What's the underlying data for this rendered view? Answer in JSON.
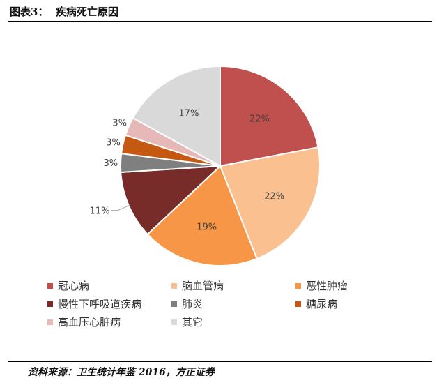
{
  "figure": {
    "title": "图表3：  疾病死亡原因",
    "source": "资料来源：卫生统计年鉴 2016，方正证券"
  },
  "chart_data": {
    "type": "pie",
    "title": "",
    "slices": [
      {
        "name": "冠心病",
        "value": 22,
        "label": "22%",
        "color": "#c0504d"
      },
      {
        "name": "脑血管病",
        "value": 22,
        "label": "22%",
        "color": "#fac090"
      },
      {
        "name": "恶性肿瘤",
        "value": 19,
        "label": "19%",
        "color": "#f79646"
      },
      {
        "name": "慢性下呼吸道疾病",
        "value": 11,
        "label": "11%",
        "color": "#772c2a"
      },
      {
        "name": "肺炎",
        "value": 3,
        "label": "3%",
        "color": "#7f7f7f"
      },
      {
        "name": "糖尿病",
        "value": 3,
        "label": "3%",
        "color": "#c65911"
      },
      {
        "name": "高血压心脏病",
        "value": 3,
        "label": "3%",
        "color": "#e6b9b8"
      },
      {
        "name": "其它",
        "value": 17,
        "label": "17%",
        "color": "#d9d9d9"
      }
    ],
    "start_angle_deg": 0,
    "direction": "clockwise",
    "legend_position": "bottom"
  }
}
